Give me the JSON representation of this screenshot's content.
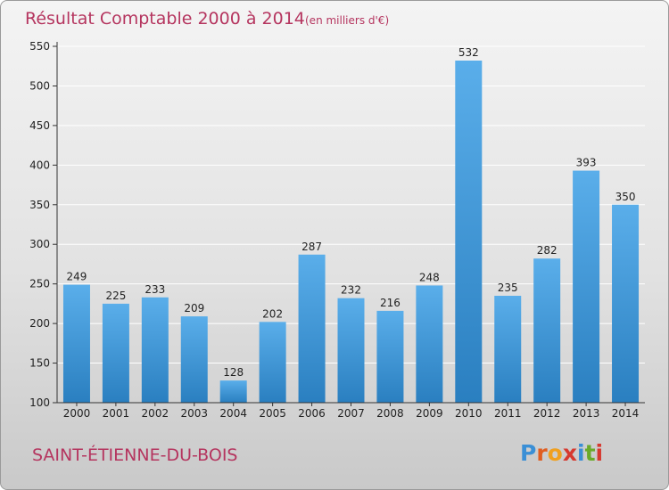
{
  "chart_data": {
    "type": "bar",
    "title": "Résultat Comptable 2000 à 2014",
    "subtitle": "(en milliers d'€)",
    "categories": [
      "2000",
      "2001",
      "2002",
      "2003",
      "2004",
      "2005",
      "2006",
      "2007",
      "2008",
      "2009",
      "2010",
      "2011",
      "2012",
      "2013",
      "2014"
    ],
    "values": [
      249,
      225,
      233,
      209,
      128,
      202,
      287,
      232,
      216,
      248,
      532,
      235,
      282,
      393,
      350
    ],
    "ylim": [
      100,
      550
    ],
    "yticks": [
      100,
      150,
      200,
      250,
      300,
      350,
      400,
      450,
      500,
      550
    ],
    "xlabel": "",
    "ylabel": "",
    "grid": true,
    "bar_color_top": "#5aaeea",
    "bar_color_bottom": "#2a7fc0"
  },
  "commune": "SAINT-ÉTIENNE-DU-BOIS",
  "logo": {
    "text": "Proxiti",
    "letter_colors": [
      "#3a8fd6",
      "#e05d20",
      "#f0a020",
      "#d6392f",
      "#3a8fd6",
      "#6aaa2a",
      "#d6392f"
    ]
  },
  "colors": {
    "accent": "#b5355f",
    "grid": "#ffffff",
    "axis": "#333333"
  }
}
